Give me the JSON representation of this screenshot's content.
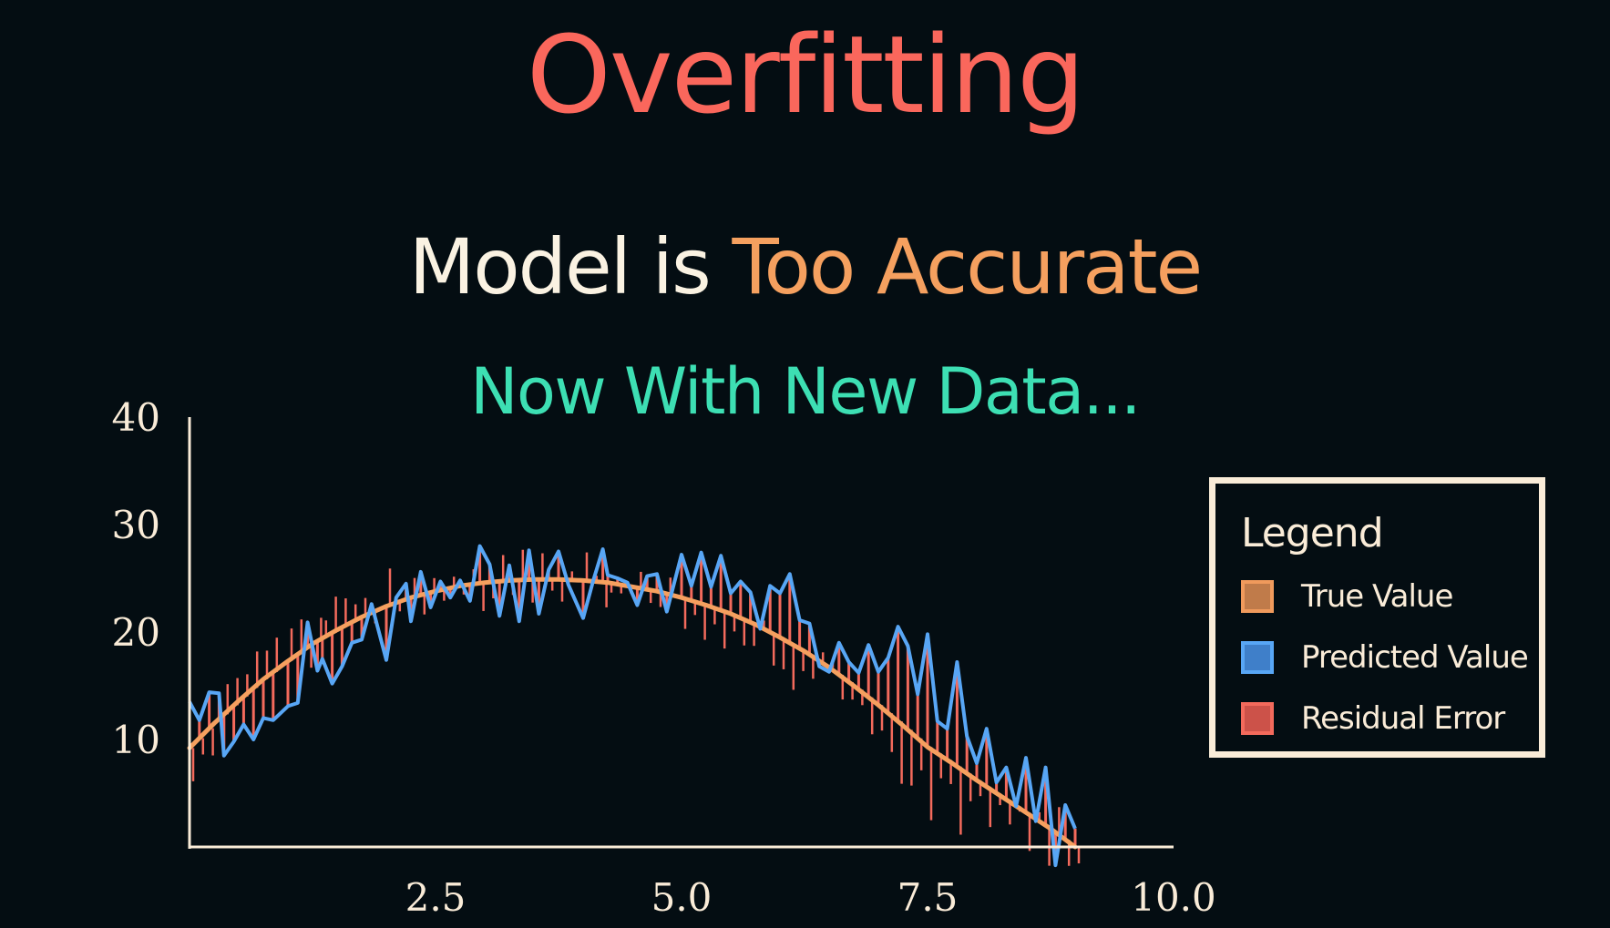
{
  "title": {
    "text": "Overfitting",
    "color": "#fa675c"
  },
  "subtitle": {
    "part1": "Model is",
    "part2": "Too Accurate",
    "color1": "#faf2e2",
    "color2": "#f5a05f"
  },
  "subtitle2": {
    "text": "Now With New Data...",
    "color": "#3ddfb3"
  },
  "legend": {
    "title": "Legend",
    "items": [
      {
        "label": "True Value",
        "fill": "#c07b4a",
        "border": "#f09a5c"
      },
      {
        "label": "Predicted Value",
        "fill": "#3f7fc9",
        "border": "#58a6f5"
      },
      {
        "label": "Residual Error",
        "fill": "#cc5249",
        "border": "#f36a5c"
      }
    ]
  },
  "chart_data": {
    "type": "line",
    "xlim": [
      0,
      10
    ],
    "ylim": [
      0,
      40
    ],
    "xticks": [
      "2.5",
      "5.0",
      "7.5",
      "10.0"
    ],
    "yticks": [
      "10",
      "20",
      "30",
      "40"
    ],
    "grid": false,
    "legend_position": "right",
    "series": [
      {
        "name": "True Value",
        "color": "#f5a05f",
        "x": [
          0.0,
          0.25,
          0.5,
          0.75,
          1.0,
          1.25,
          1.5,
          1.75,
          2.0,
          2.25,
          2.5,
          2.75,
          3.0,
          3.25,
          3.5,
          3.75,
          4.0,
          4.25,
          4.5,
          4.75,
          5.0,
          5.25,
          5.5,
          5.75,
          6.0,
          6.25,
          6.5,
          6.75,
          7.0,
          7.25,
          7.5,
          7.75,
          8.0,
          8.25,
          8.5,
          8.75,
          9.0
        ],
        "y": [
          9.2,
          11.5,
          13.6,
          15.6,
          17.3,
          18.9,
          20.2,
          21.4,
          22.4,
          23.2,
          23.8,
          24.3,
          24.6,
          24.8,
          24.9,
          24.9,
          24.8,
          24.6,
          24.2,
          23.8,
          23.2,
          22.5,
          21.7,
          20.7,
          19.5,
          18.2,
          16.7,
          15.0,
          13.2,
          11.3,
          9.3,
          7.8,
          6.2,
          4.7,
          3.2,
          1.7,
          0.0
        ]
      },
      {
        "name": "Predicted Value",
        "color": "#58a6f5",
        "x": [
          0.0,
          0.1,
          0.2,
          0.3,
          0.35,
          0.45,
          0.55,
          0.65,
          0.75,
          0.85,
          1.0,
          1.1,
          1.2,
          1.3,
          1.35,
          1.45,
          1.55,
          1.65,
          1.75,
          1.85,
          2.0,
          2.1,
          2.2,
          2.25,
          2.35,
          2.45,
          2.55,
          2.65,
          2.75,
          2.85,
          2.95,
          3.05,
          3.15,
          3.25,
          3.35,
          3.45,
          3.55,
          3.65,
          3.75,
          3.85,
          4.0,
          4.1,
          4.2,
          4.25,
          4.35,
          4.45,
          4.55,
          4.65,
          4.75,
          4.85,
          5.0,
          5.1,
          5.2,
          5.3,
          5.4,
          5.5,
          5.6,
          5.7,
          5.8,
          5.9,
          6.0,
          6.1,
          6.2,
          6.3,
          6.4,
          6.5,
          6.6,
          6.7,
          6.8,
          6.9,
          7.0,
          7.1,
          7.2,
          7.3,
          7.4,
          7.5,
          7.6,
          7.7,
          7.8,
          7.9,
          8.0,
          8.1,
          8.2,
          8.3,
          8.4,
          8.5,
          8.6,
          8.7,
          8.8,
          8.9,
          9.0
        ],
        "y": [
          13.5,
          11.8,
          14.4,
          14.3,
          8.5,
          9.8,
          11.4,
          10.0,
          12.0,
          11.8,
          13.1,
          13.4,
          20.9,
          16.4,
          17.5,
          15.2,
          16.8,
          19.0,
          19.3,
          22.6,
          17.4,
          23.2,
          24.5,
          21.0,
          25.6,
          22.3,
          24.7,
          23.2,
          24.8,
          22.9,
          28.0,
          26.3,
          21.5,
          26.2,
          21.0,
          27.6,
          21.7,
          25.8,
          27.5,
          24.4,
          21.3,
          24.7,
          27.7,
          25.3,
          25.0,
          24.6,
          22.5,
          25.2,
          25.4,
          21.9,
          27.2,
          24.3,
          27.4,
          24.2,
          27.1,
          23.6,
          24.7,
          23.7,
          20.3,
          24.3,
          23.6,
          25.4,
          21.1,
          20.8,
          16.8,
          16.3,
          19.0,
          17.2,
          16.2,
          18.8,
          16.3,
          17.6,
          20.5,
          18.7,
          14.2,
          19.8,
          11.7,
          11.0,
          17.2,
          10.3,
          7.8,
          11.0,
          6.0,
          7.4,
          3.8,
          8.3,
          2.4,
          7.4,
          -1.7,
          3.9,
          1.7
        ]
      }
    ]
  }
}
